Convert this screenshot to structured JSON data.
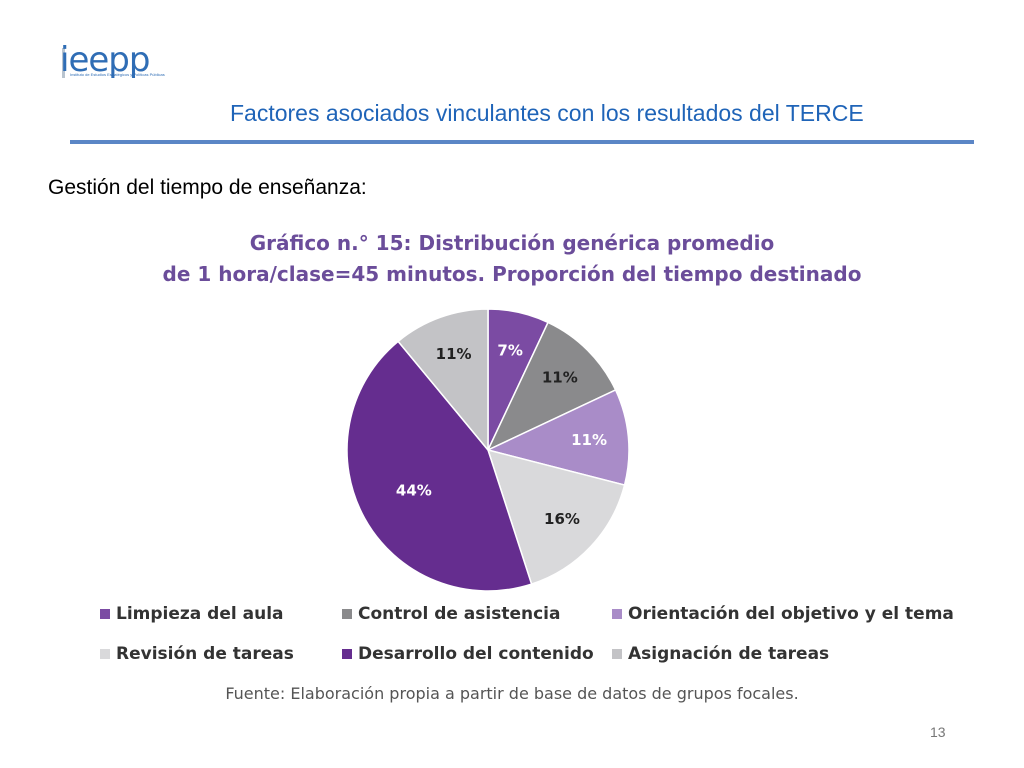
{
  "logo": {
    "text": "ieepp",
    "subtext": "Instituto de Estudios Estratégicos y Políticas Públicas"
  },
  "slide": {
    "title": "Factores asociados vinculantes con los resultados del TERCE",
    "subtitle": "Gestión del tiempo de enseñanza:",
    "page_number": "13"
  },
  "chart_data": {
    "type": "pie",
    "title_line1": "Gráfico n.° 15:  Distribución genérica promedio",
    "title_line2": "de 1 hora/clase=45 minutos. Proporción del tiempo destinado",
    "source": "Fuente: Elaboración propia a partir de base de datos de grupos focales.",
    "slices": [
      {
        "label": "Limpieza del aula",
        "value": 7,
        "display": "7%",
        "color": "#7b4ba3",
        "text_color": "#ffffff"
      },
      {
        "label": "Control de asistencia",
        "value": 11,
        "display": "11%",
        "color": "#8a8a8c",
        "text_color": "#222222"
      },
      {
        "label": "Orientación del objetivo y el tema",
        "value": 11,
        "display": "11%",
        "color": "#a98cc8",
        "text_color": "#ffffff"
      },
      {
        "label": "Revisión de tareas",
        "value": 16,
        "display": "16%",
        "color": "#d9d9db",
        "text_color": "#222222"
      },
      {
        "label": "Desarrollo del contenido",
        "value": 44,
        "display": "44%",
        "color": "#652d8f",
        "text_color": "#ffffff"
      },
      {
        "label": "Asignación de tareas",
        "value": 11,
        "display": "11%",
        "color": "#c3c3c6",
        "text_color": "#222222"
      }
    ],
    "legend": [
      {
        "label": "Limpieza del aula",
        "color": "#7b4ba3"
      },
      {
        "label": "Control de asistencia",
        "color": "#8a8a8c"
      },
      {
        "label": "Orientación del objetivo y el tema",
        "color": "#a98cc8"
      },
      {
        "label": "Revisión de tareas",
        "color": "#d9d9db"
      },
      {
        "label": "Desarrollo del contenido",
        "color": "#652d8f"
      },
      {
        "label": "Asignación de tareas",
        "color": "#c3c3c6"
      }
    ]
  }
}
